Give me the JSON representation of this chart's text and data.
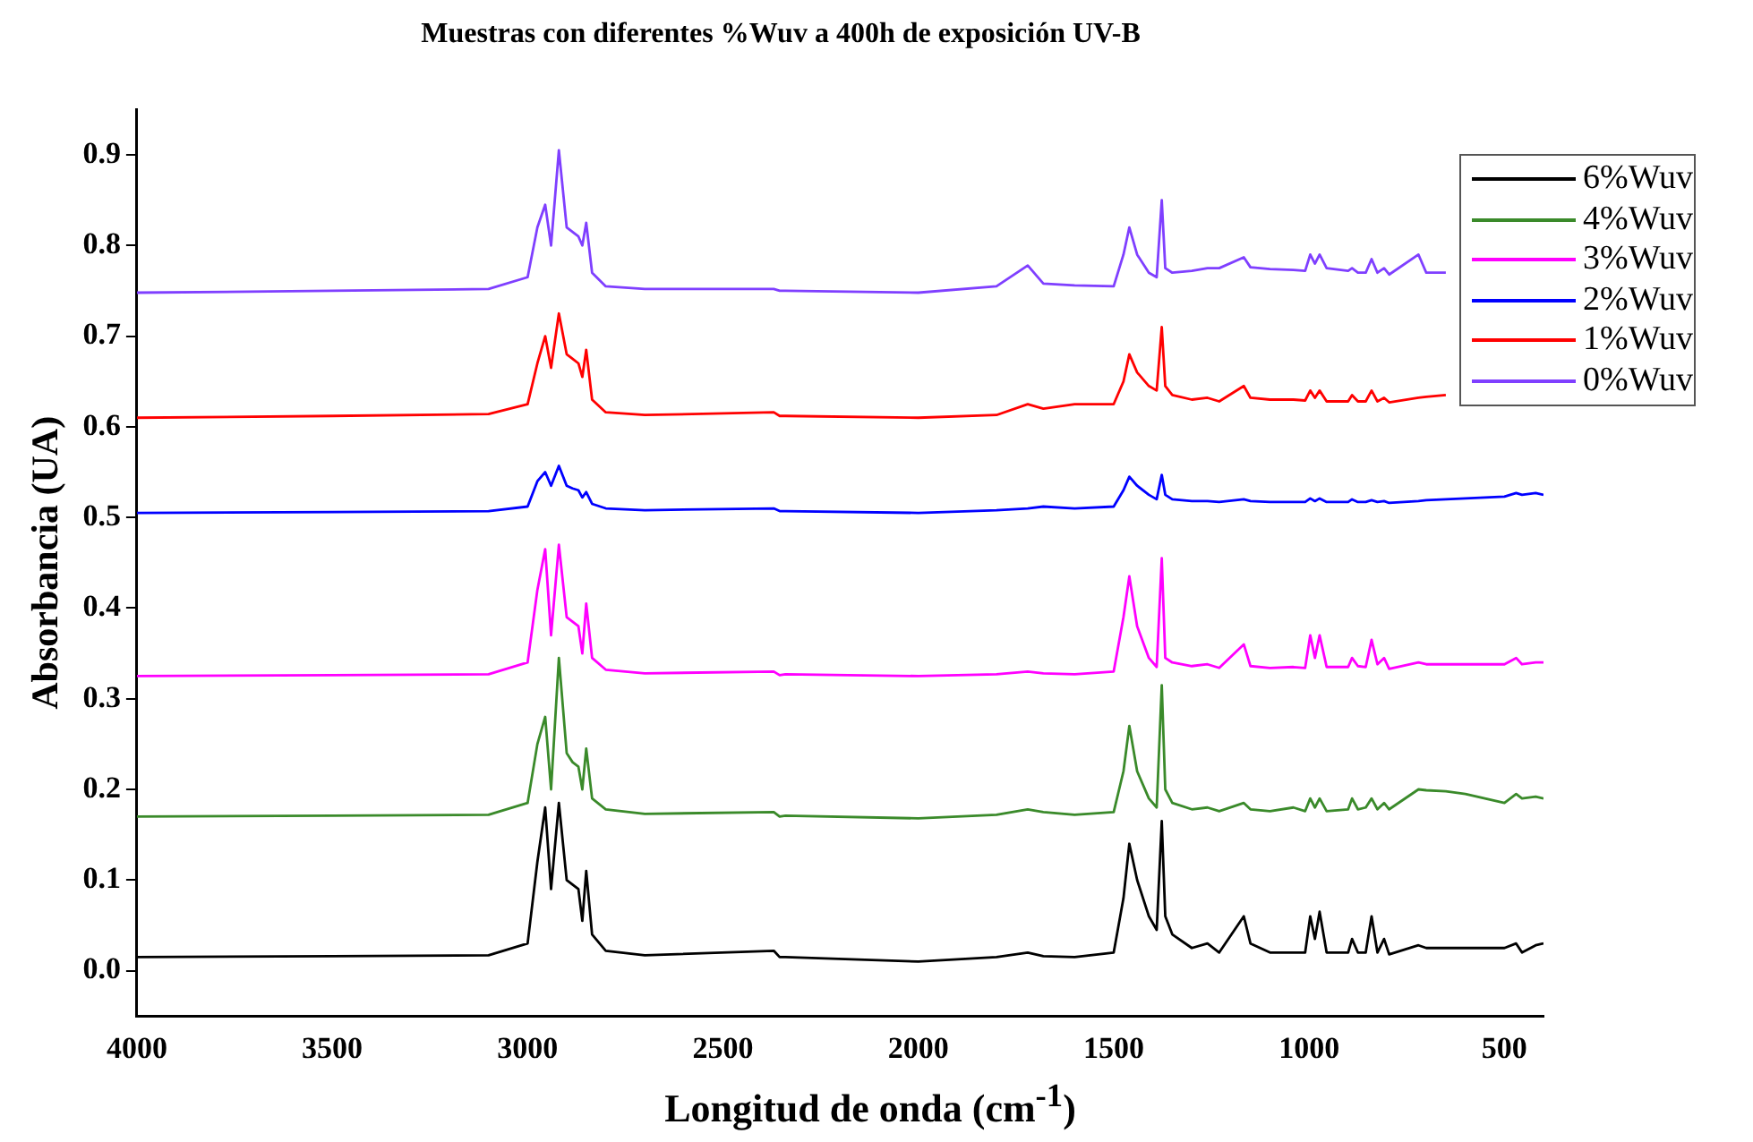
{
  "chart_data": {
    "type": "line",
    "title": "Muestras con diferentes %Wuv a 400h de exposición UV-B",
    "xlabel": "Longitud de onda (cm$^{-1}$)",
    "ylabel": "Absorbancia (UA)",
    "x": [
      4000,
      3500,
      3100,
      3000,
      2975,
      2955,
      2940,
      2920,
      2900,
      2885,
      2870,
      2860,
      2850,
      2835,
      2800,
      2700,
      2370,
      2355,
      2340,
      2000,
      1800,
      1720,
      1680,
      1600,
      1500,
      1475,
      1460,
      1440,
      1410,
      1390,
      1377,
      1368,
      1350,
      1300,
      1260,
      1230,
      1167,
      1150,
      1100,
      1040,
      1010,
      997,
      985,
      973,
      955,
      900,
      890,
      875,
      855,
      840,
      825,
      808,
      795,
      720,
      700,
      650,
      600,
      500,
      470,
      455,
      420,
      400
    ],
    "series": [
      {
        "name": "6%Wuv",
        "color": "#000000",
        "values": [
          0.015,
          0.016,
          0.017,
          0.03,
          0.12,
          0.18,
          0.09,
          0.185,
          0.1,
          0.095,
          0.09,
          0.055,
          0.11,
          0.04,
          0.022,
          0.017,
          0.022,
          0.015,
          0.015,
          0.01,
          0.015,
          0.02,
          0.016,
          0.015,
          0.02,
          0.08,
          0.14,
          0.1,
          0.06,
          0.045,
          0.165,
          0.06,
          0.04,
          0.025,
          0.03,
          0.02,
          0.06,
          0.03,
          0.02,
          0.02,
          0.02,
          0.06,
          0.035,
          0.065,
          0.02,
          0.02,
          0.035,
          0.02,
          0.02,
          0.06,
          0.02,
          0.035,
          0.018,
          0.028,
          0.025,
          0.025,
          0.025,
          0.025,
          0.03,
          0.02,
          0.028,
          0.03
        ]
      },
      {
        "name": "4%Wuv",
        "color": "#3a8a2a",
        "values": [
          0.17,
          0.171,
          0.172,
          0.185,
          0.25,
          0.28,
          0.2,
          0.345,
          0.24,
          0.23,
          0.225,
          0.2,
          0.245,
          0.19,
          0.178,
          0.173,
          0.175,
          0.17,
          0.171,
          0.168,
          0.172,
          0.178,
          0.175,
          0.172,
          0.175,
          0.22,
          0.27,
          0.22,
          0.19,
          0.18,
          0.315,
          0.2,
          0.185,
          0.178,
          0.18,
          0.176,
          0.185,
          0.178,
          0.176,
          0.18,
          0.176,
          0.19,
          0.18,
          0.19,
          0.176,
          0.178,
          0.19,
          0.178,
          0.18,
          0.19,
          0.178,
          0.185,
          0.178,
          0.2,
          0.199,
          0.198,
          0.195,
          0.185,
          0.195,
          0.19,
          0.192,
          0.19
        ]
      },
      {
        "name": "3%Wuv",
        "color": "#ff00ff",
        "values": [
          0.325,
          0.326,
          0.327,
          0.34,
          0.42,
          0.465,
          0.37,
          0.47,
          0.39,
          0.385,
          0.38,
          0.35,
          0.405,
          0.345,
          0.332,
          0.328,
          0.33,
          0.326,
          0.327,
          0.325,
          0.327,
          0.33,
          0.328,
          0.327,
          0.33,
          0.39,
          0.435,
          0.38,
          0.345,
          0.335,
          0.455,
          0.345,
          0.34,
          0.336,
          0.338,
          0.334,
          0.36,
          0.336,
          0.334,
          0.335,
          0.334,
          0.37,
          0.345,
          0.37,
          0.335,
          0.335,
          0.345,
          0.336,
          0.335,
          0.365,
          0.338,
          0.345,
          0.333,
          0.34,
          0.338,
          0.338,
          0.338,
          0.338,
          0.345,
          0.338,
          0.34,
          0.34
        ]
      },
      {
        "name": "2%Wuv",
        "color": "#0000ff",
        "values": [
          0.505,
          0.506,
          0.507,
          0.512,
          0.54,
          0.55,
          0.535,
          0.557,
          0.535,
          0.532,
          0.53,
          0.522,
          0.528,
          0.515,
          0.51,
          0.508,
          0.51,
          0.507,
          0.507,
          0.505,
          0.508,
          0.51,
          0.512,
          0.51,
          0.512,
          0.53,
          0.545,
          0.535,
          0.525,
          0.52,
          0.547,
          0.525,
          0.52,
          0.518,
          0.518,
          0.517,
          0.52,
          0.518,
          0.517,
          0.517,
          0.517,
          0.521,
          0.518,
          0.521,
          0.517,
          0.517,
          0.52,
          0.517,
          0.517,
          0.519,
          0.517,
          0.518,
          0.516,
          0.518,
          0.519,
          0.52,
          0.521,
          0.523,
          0.527,
          0.525,
          0.527,
          0.525
        ]
      },
      {
        "name": "1%Wuv",
        "color": "#ff0000",
        "values": [
          0.61,
          0.612,
          0.614,
          0.625,
          0.67,
          0.7,
          0.665,
          0.725,
          0.68,
          0.675,
          0.67,
          0.655,
          0.685,
          0.63,
          0.616,
          0.613,
          0.616,
          0.612,
          0.612,
          0.61,
          0.613,
          0.625,
          0.62,
          0.625,
          0.625,
          0.65,
          0.68,
          0.66,
          0.645,
          0.64,
          0.71,
          0.645,
          0.635,
          0.63,
          0.632,
          0.628,
          0.645,
          0.632,
          0.63,
          0.63,
          0.629,
          0.64,
          0.632,
          0.64,
          0.628,
          0.628,
          0.635,
          0.628,
          0.628,
          0.64,
          0.628,
          0.632,
          0.627,
          0.632,
          0.633,
          0.635,
          null,
          null,
          null,
          null,
          null,
          null
        ]
      },
      {
        "name": "0%Wuv",
        "color": "#7f3fff",
        "values": [
          0.748,
          0.75,
          0.752,
          0.765,
          0.82,
          0.845,
          0.8,
          0.905,
          0.82,
          0.815,
          0.81,
          0.8,
          0.825,
          0.77,
          0.755,
          0.752,
          0.752,
          0.75,
          0.75,
          0.748,
          0.755,
          0.778,
          0.758,
          0.756,
          0.755,
          0.79,
          0.82,
          0.79,
          0.77,
          0.765,
          0.85,
          0.775,
          0.77,
          0.772,
          0.775,
          0.775,
          0.787,
          0.776,
          0.774,
          0.773,
          0.772,
          0.79,
          0.78,
          0.79,
          0.775,
          0.772,
          0.775,
          0.77,
          0.77,
          0.785,
          0.77,
          0.775,
          0.768,
          0.79,
          0.77,
          0.77,
          null,
          null,
          null,
          null,
          null,
          null
        ]
      }
    ],
    "xlim": [
      4000,
      400
    ],
    "xticks": [
      4000,
      3500,
      3000,
      2500,
      2000,
      1500,
      1000,
      500
    ],
    "ylim": [
      -0.05,
      0.95
    ],
    "yticks": [
      {
        "value": 0,
        "label": "0.0"
      },
      {
        "value": 0.1,
        "label": "0.1"
      },
      {
        "value": 0.2,
        "label": "0.2"
      },
      {
        "value": 0.3,
        "label": "0.3"
      },
      {
        "value": 0.4,
        "label": "0.4"
      },
      {
        "value": 0.5,
        "label": "0.5"
      },
      {
        "value": 0.6,
        "label": "0.6"
      },
      {
        "value": 0.7,
        "label": "0.7"
      },
      {
        "value": 0.8,
        "label": "0.8"
      },
      {
        "value": 0.9,
        "label": "0.9"
      }
    ],
    "grid": false,
    "legend": "top right",
    "marker": "none",
    "line_style": "solid"
  }
}
